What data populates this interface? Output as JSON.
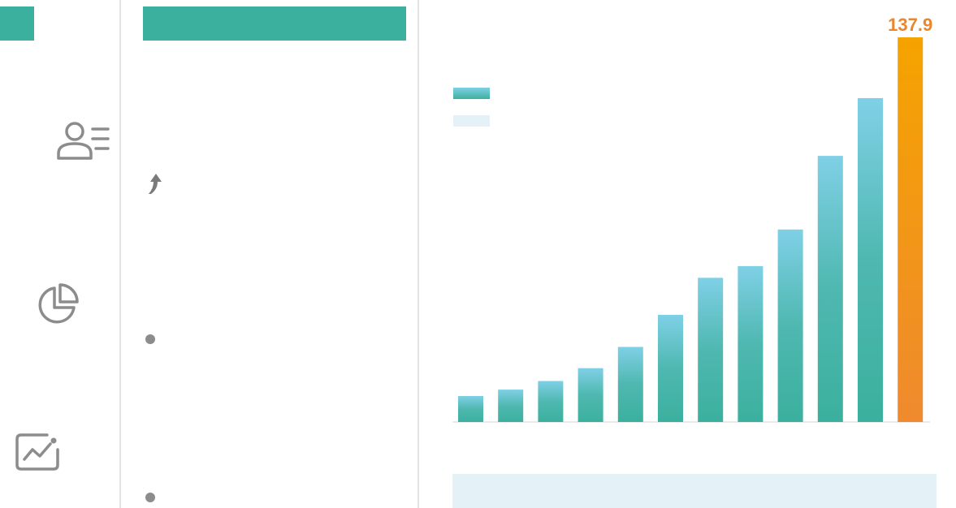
{
  "left_nav": {
    "icons": [
      {
        "name": "user-list-icon"
      },
      {
        "name": "pie-chart-icon"
      },
      {
        "name": "trend-chart-icon"
      }
    ]
  },
  "middle_panel": {
    "trend_icon": "arrow-up-icon",
    "bullets": 2
  },
  "colors": {
    "accent": "#3bb09e",
    "bar_top": "#7fd0e6",
    "highlight_top": "#f5a300",
    "highlight_bottom": "#ef8a2e",
    "label": "#e8872f",
    "footer_band": "#e4f1f7"
  },
  "chart_data": {
    "type": "bar",
    "series": [
      {
        "values": [
          9.3,
          11.6,
          14.7,
          19.3,
          26.9,
          38.4,
          51.7,
          55.9,
          69.0,
          95.4,
          116.1,
          137.9
        ]
      }
    ],
    "highlight_index": 11,
    "data_labels": [
      "",
      "",
      "",
      "",
      "",
      "",
      "",
      "",
      "",
      "",
      "",
      "137.9"
    ],
    "ylim": [
      0,
      150
    ],
    "legend": {
      "position": "top-left",
      "entries": [
        "",
        ""
      ]
    },
    "grid": false
  }
}
